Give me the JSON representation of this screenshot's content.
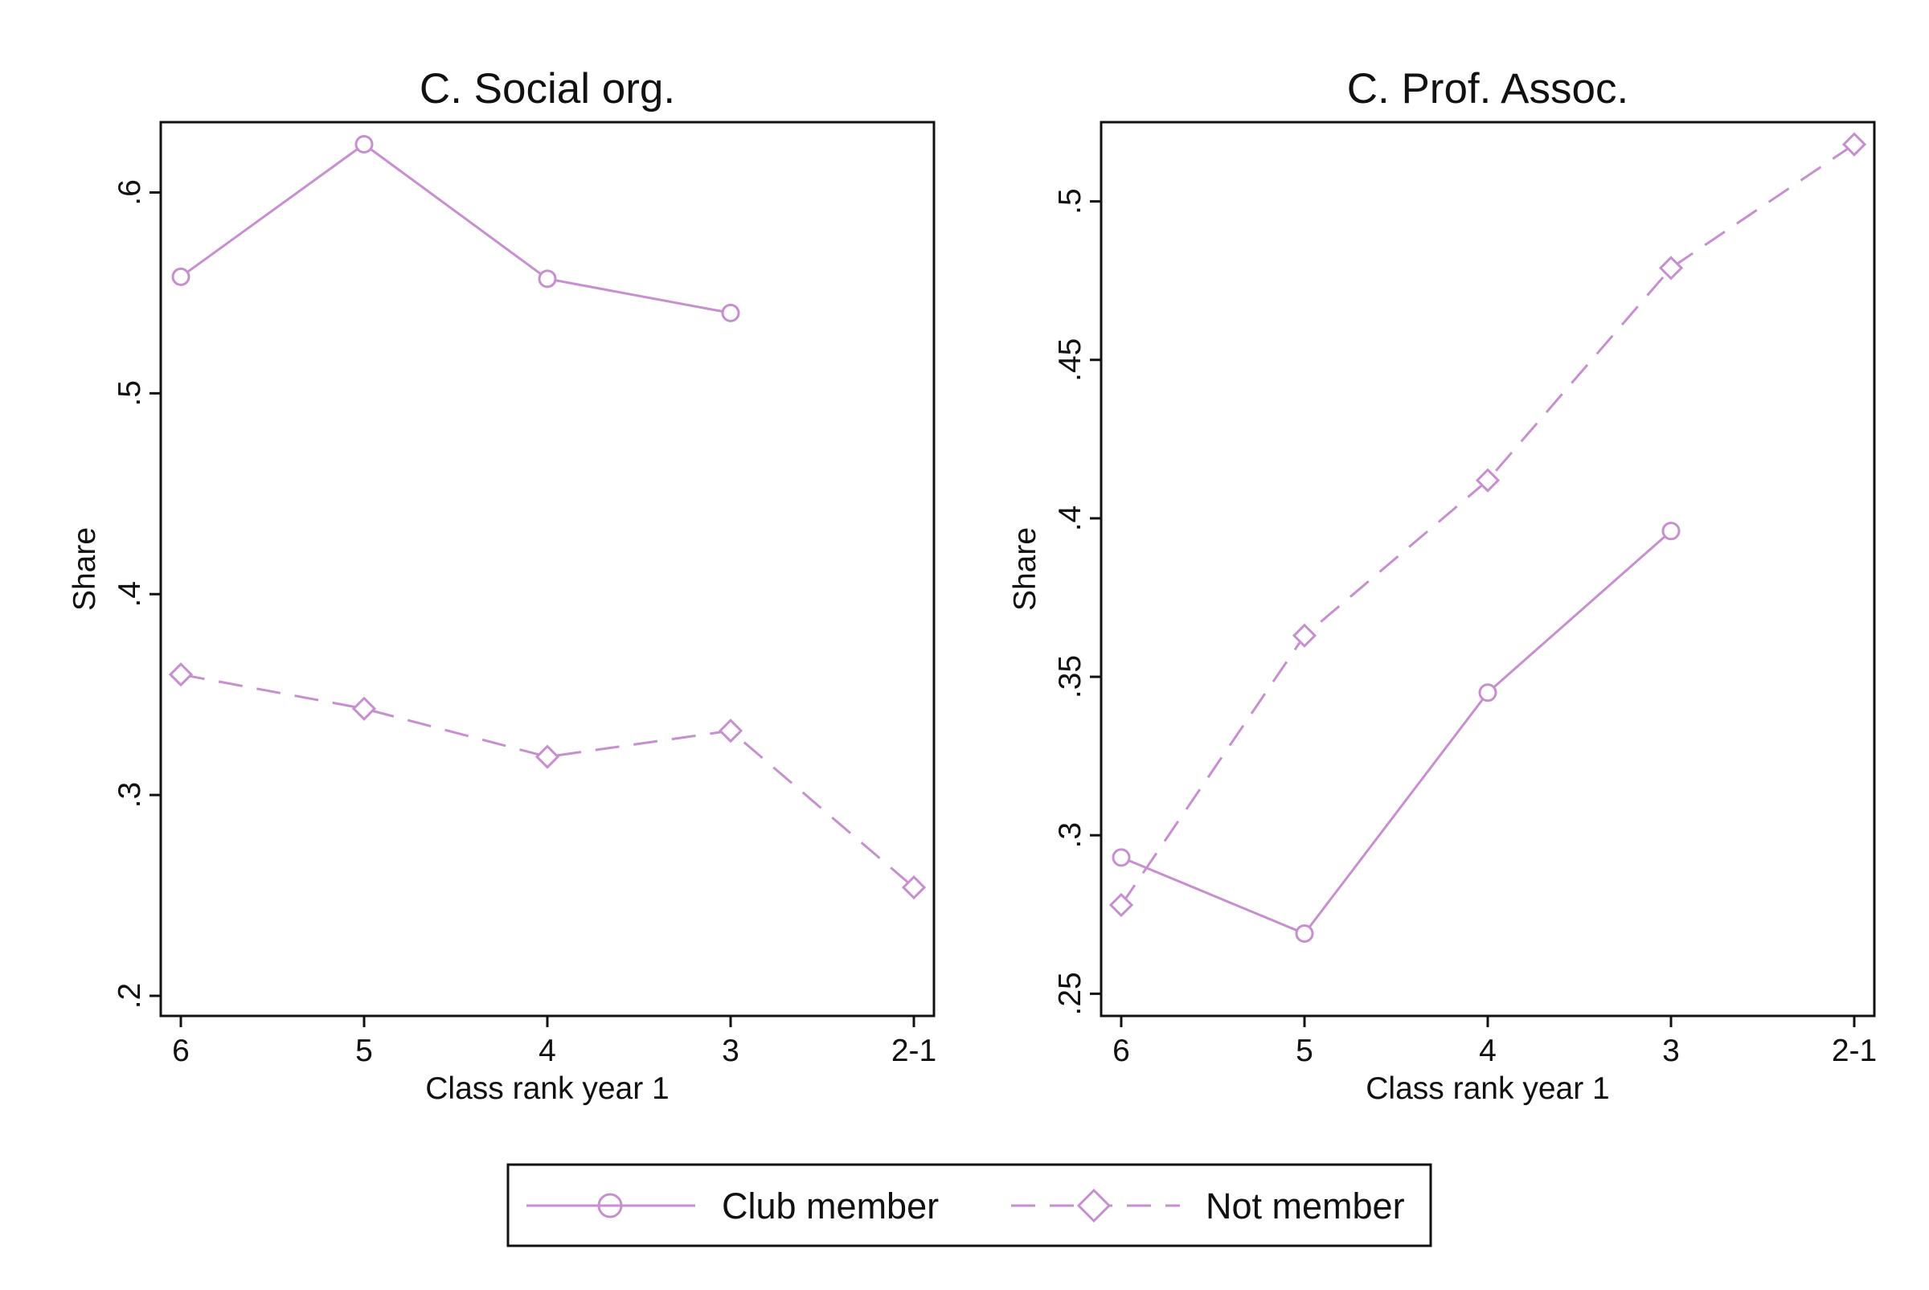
{
  "chart_data": [
    {
      "type": "line",
      "title": "C. Social org.",
      "xlabel": "Class rank year 1",
      "ylabel": "Share",
      "categories": [
        "6",
        "5",
        "4",
        "3",
        "2-1"
      ],
      "yticks": [
        0.2,
        0.3,
        0.4,
        0.5,
        0.6
      ],
      "ytick_labels": [
        ".2",
        ".3",
        ".4",
        ".5",
        ".6"
      ],
      "ylim": [
        0.19,
        0.635
      ],
      "grid": false,
      "series": [
        {
          "name": "Club member",
          "values": [
            0.558,
            0.624,
            0.557,
            0.54,
            null
          ]
        },
        {
          "name": "Not member",
          "values": [
            0.36,
            0.343,
            0.319,
            0.332,
            0.254
          ]
        }
      ]
    },
    {
      "type": "line",
      "title": "C. Prof. Assoc.",
      "xlabel": "Class rank year 1",
      "ylabel": "Share",
      "categories": [
        "6",
        "5",
        "4",
        "3",
        "2-1"
      ],
      "yticks": [
        0.25,
        0.3,
        0.35,
        0.4,
        0.45,
        0.5
      ],
      "ytick_labels": [
        ".25",
        ".3",
        ".35",
        ".4",
        ".45",
        ".5"
      ],
      "ylim": [
        0.243,
        0.525
      ],
      "grid": false,
      "series": [
        {
          "name": "Club member",
          "values": [
            0.293,
            0.269,
            0.345,
            0.396,
            null
          ]
        },
        {
          "name": "Not member",
          "values": [
            0.278,
            0.363,
            0.412,
            0.479,
            0.518
          ]
        }
      ]
    }
  ],
  "legend": {
    "position": "bottom-center",
    "entries": [
      {
        "label": "Club member",
        "marker": "circle",
        "line": "solid"
      },
      {
        "label": "Not member",
        "marker": "diamond",
        "line": "dashed"
      }
    ]
  },
  "colors": {
    "series": "#c88fd0",
    "axis": "#111111",
    "background": "#ffffff"
  }
}
